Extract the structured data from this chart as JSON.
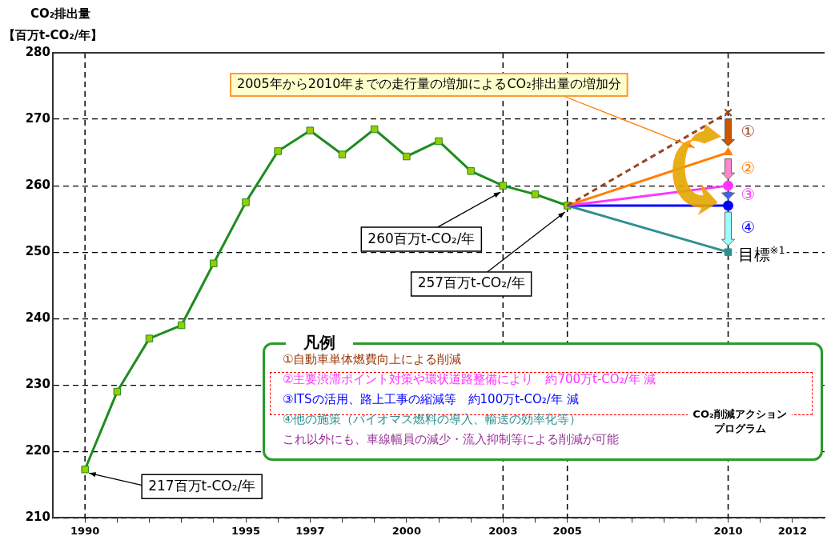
{
  "chart_data": {
    "type": "line",
    "ylabel": "CO₂排出量【百万t-CO₂/年】",
    "xlim": [
      1989,
      2013
    ],
    "xticks": [
      {
        "value": 1990,
        "label": "1990"
      },
      {
        "value": 1991,
        "label": null
      },
      {
        "value": 1992,
        "label": null
      },
      {
        "value": 1993,
        "label": null
      },
      {
        "value": 1994,
        "label": null
      },
      {
        "value": 1995,
        "label": "1995"
      },
      {
        "value": 1996,
        "label": null
      },
      {
        "value": 1997,
        "label": "1997"
      },
      {
        "value": 1998,
        "label": null
      },
      {
        "value": 1999,
        "label": null
      },
      {
        "value": 2000,
        "label": "2000"
      },
      {
        "value": 2001,
        "label": null
      },
      {
        "value": 2002,
        "label": null
      },
      {
        "value": 2003,
        "label": "2003"
      },
      {
        "value": 2004,
        "label": null
      },
      {
        "value": 2005,
        "label": "2005"
      },
      {
        "value": 2006,
        "label": null
      },
      {
        "value": 2007,
        "label": null
      },
      {
        "value": 2008,
        "label": null
      },
      {
        "value": 2009,
        "label": null
      },
      {
        "value": 2010,
        "label": "2010"
      },
      {
        "value": 2011,
        "label": null
      },
      {
        "value": 2012,
        "label": "2012"
      }
    ],
    "ylim": [
      210,
      280
    ],
    "yticks": [
      210,
      220,
      230,
      240,
      250,
      260,
      270,
      280
    ],
    "grid": "y",
    "legend": false,
    "x": [
      1990,
      1991,
      1992,
      1993,
      1994,
      1995,
      1996,
      1997,
      1998,
      1999,
      2000,
      2001,
      2002,
      2003,
      2004,
      2005,
      2010
    ],
    "series": [
      {
        "color": "#1e8c1e",
        "marker": "square",
        "line_style": "solid",
        "values": [
          217.3,
          229,
          237,
          239,
          248.3,
          257.5,
          265.2,
          268.3,
          264.7,
          268.5,
          264.4,
          266.7,
          262.2,
          260,
          258.7,
          257,
          null
        ]
      },
      {
        "color": "#994422",
        "marker": "cross",
        "line_style": "dashed",
        "values": [
          null,
          null,
          null,
          null,
          null,
          null,
          null,
          null,
          null,
          null,
          null,
          null,
          null,
          null,
          null,
          257,
          271
        ]
      },
      {
        "color": "#ff7f00",
        "marker": "triangle",
        "line_style": "solid",
        "values": [
          null,
          null,
          null,
          null,
          null,
          null,
          null,
          null,
          null,
          null,
          null,
          null,
          null,
          null,
          null,
          257,
          265
        ]
      },
      {
        "color": "#ff33ff",
        "marker": "circle",
        "line_style": "solid",
        "values": [
          null,
          null,
          null,
          null,
          null,
          null,
          null,
          null,
          null,
          null,
          null,
          null,
          null,
          null,
          null,
          257,
          260
        ]
      },
      {
        "color": "#0000ff",
        "marker": "circle",
        "line_style": "solid",
        "values": [
          null,
          null,
          null,
          null,
          null,
          null,
          null,
          null,
          null,
          null,
          null,
          null,
          null,
          null,
          null,
          257,
          257
        ]
      },
      {
        "color": "#2f8f8f",
        "marker": "square",
        "line_style": "solid",
        "values": [
          null,
          null,
          null,
          null,
          null,
          null,
          null,
          null,
          null,
          null,
          null,
          null,
          null,
          null,
          null,
          257,
          250
        ]
      }
    ],
    "ref_lines": [
      {
        "axis": "x",
        "value": 1990,
        "line_style": "dashed"
      },
      {
        "axis": "x",
        "value": 2003,
        "line_style": "dashed"
      },
      {
        "axis": "x",
        "value": 2005,
        "line_style": "dashed"
      },
      {
        "axis": "x",
        "value": 2010,
        "line_style": "dashed"
      }
    ],
    "annotations": [
      {
        "text": "260百万t-CO₂/年",
        "x": 2003,
        "y": 260
      },
      {
        "text": "257百万t-CO₂/年",
        "x": 2005,
        "y": 257
      },
      {
        "text": "217百万t-CO₂/年",
        "x": 1990,
        "y": 217
      },
      {
        "text": "目標$^{※1}$",
        "x": 2010,
        "y": 250
      },
      {
        "text": "①",
        "x": 2010,
        "y": 268
      },
      {
        "text": "②",
        "x": 2010,
        "y": 262.5
      },
      {
        "text": "③",
        "x": 2010,
        "y": 258.5
      },
      {
        "text": "④",
        "x": 2010,
        "y": 253.5
      },
      "2005年から2010年までの走行量の増加によるCO₂排出量の増加分",
      "凡例",
      "①自動車単体燃費向上による削減",
      "②主要渋滞ポイント対策や環状道路整備により　約700万t-CO₂/年 減",
      "③ITSの活用、路上工事の縮減等　約100万t-CO₂/年 減",
      "④他の施策（バイオマス燃料の導入、輸送の効率化等）",
      "これ以外にも、車線幅員の減少・流入抑制等による削減が可能",
      "CO₂削減アクションプログラム"
    ]
  }
}
